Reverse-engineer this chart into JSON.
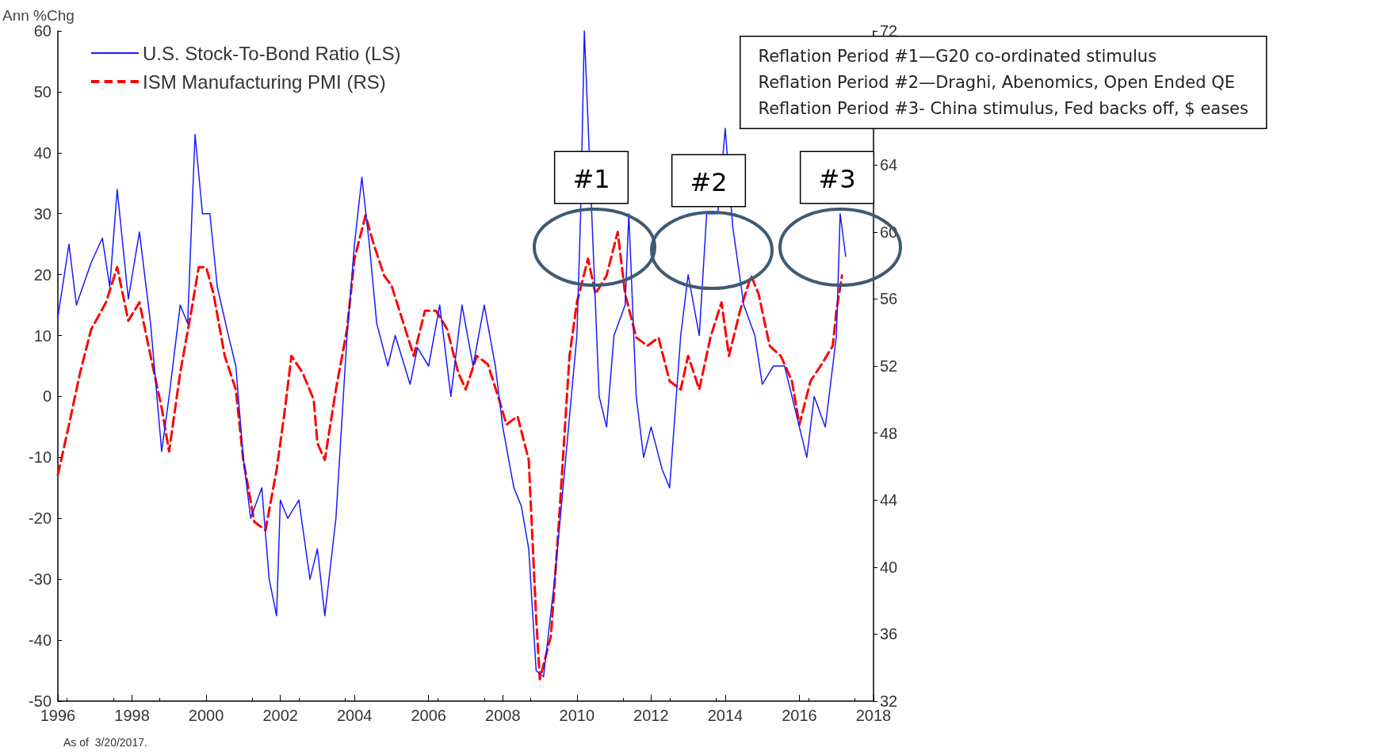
{
  "chart_data": {
    "type": "line",
    "ylabel": "Ann %Chg",
    "xlim": [
      1996,
      2018
    ],
    "xticks": [
      1996,
      1998,
      2000,
      2002,
      2004,
      2006,
      2008,
      2010,
      2012,
      2014,
      2016,
      2018
    ],
    "ylim": [
      -50,
      60
    ],
    "yticks": [
      -50,
      -40,
      -30,
      -20,
      -10,
      0,
      10,
      20,
      30,
      40,
      50,
      60
    ],
    "y2lim": [
      32,
      72
    ],
    "y2ticks": [
      32,
      36,
      40,
      44,
      48,
      52,
      56,
      60,
      64,
      {
        "value": 68,
        "label": null
      },
      72
    ],
    "grid": false,
    "legend": "top left",
    "marker": "none",
    "series": [
      {
        "name": "U.S. Stock-To-Bond Ratio (LS)",
        "color": "#1a1aff",
        "line_style": "solid",
        "x": [
          1996.0,
          1996.3,
          1996.5,
          1996.9,
          1997.2,
          1997.4,
          1997.6,
          1997.9,
          1998.2,
          1998.5,
          1998.8,
          1999.0,
          1999.3,
          1999.5,
          1999.7,
          1999.9,
          2000.1,
          2000.3,
          2000.6,
          2000.8,
          2001.0,
          2001.2,
          2001.5,
          2001.7,
          2001.9,
          2002.0,
          2002.2,
          2002.5,
          2002.8,
          2003.0,
          2003.2,
          2003.5,
          2003.8,
          2004.0,
          2004.2,
          2004.4,
          2004.6,
          2004.9,
          2005.1,
          2005.5,
          2005.7,
          2006.0,
          2006.3,
          2006.6,
          2006.9,
          2007.2,
          2007.5,
          2007.8,
          2008.0,
          2008.3,
          2008.5,
          2008.7,
          2008.9,
          2009.1,
          2009.4,
          2009.7,
          2010.0,
          2010.1,
          2010.2,
          2010.4,
          2010.6,
          2010.8,
          2011.0,
          2011.3,
          2011.4,
          2011.6,
          2011.8,
          2012.0,
          2012.3,
          2012.5,
          2012.8,
          2013.0,
          2013.3,
          2013.5,
          2013.8,
          2014.0,
          2014.2,
          2014.5,
          2014.8,
          2015.0,
          2015.3,
          2015.6,
          2016.0,
          2016.2,
          2016.4,
          2016.7,
          2016.9,
          2017.0,
          2017.1,
          2017.25
        ],
        "values": [
          13,
          25,
          15,
          22,
          26,
          18,
          34,
          16,
          27,
          12,
          -9,
          0,
          15,
          12,
          43,
          30,
          30,
          18,
          10,
          5,
          -10,
          -20,
          -15,
          -30,
          -36,
          -17,
          -20,
          -17,
          -30,
          -25,
          -36,
          -20,
          10,
          25,
          36,
          25,
          12,
          5,
          10,
          2,
          8,
          5,
          15,
          0,
          15,
          5,
          15,
          5,
          -5,
          -15,
          -18,
          -25,
          -45,
          -46,
          -30,
          -10,
          10,
          30,
          60,
          30,
          0,
          -5,
          10,
          15,
          30,
          0,
          -10,
          -5,
          -12,
          -15,
          10,
          20,
          10,
          30,
          30,
          44,
          28,
          15,
          10,
          2,
          5,
          5,
          -5,
          -10,
          0,
          -5,
          5,
          10,
          30,
          23
        ]
      },
      {
        "name": "ISM Manufacturing PMI (RS)",
        "color": "#ff0000",
        "line_style": "dashed",
        "axis": "y2",
        "x": [
          1996.0,
          1996.3,
          1996.6,
          1996.9,
          1997.3,
          1997.6,
          1997.9,
          1998.2,
          1998.5,
          1998.8,
          1999.0,
          1999.3,
          1999.6,
          1999.8,
          2000.0,
          2000.2,
          2000.5,
          2000.8,
          2001.0,
          2001.3,
          2001.6,
          2001.9,
          2002.1,
          2002.3,
          2002.6,
          2002.9,
          2003.0,
          2003.2,
          2003.5,
          2003.8,
          2004.0,
          2004.3,
          2004.5,
          2004.8,
          2005.0,
          2005.3,
          2005.6,
          2005.9,
          2006.2,
          2006.5,
          2006.8,
          2007.0,
          2007.3,
          2007.6,
          2007.9,
          2008.1,
          2008.4,
          2008.7,
          2008.9,
          2009.0,
          2009.3,
          2009.5,
          2009.8,
          2010.0,
          2010.3,
          2010.5,
          2010.8,
          2011.1,
          2011.3,
          2011.6,
          2011.9,
          2012.2,
          2012.5,
          2012.8,
          2013.0,
          2013.3,
          2013.6,
          2013.9,
          2014.1,
          2014.4,
          2014.7,
          2014.9,
          2015.2,
          2015.5,
          2015.8,
          2016.0,
          2016.3,
          2016.6,
          2016.9,
          2017.0,
          2017.15
        ],
        "values": [
          45.5,
          48.5,
          51.6,
          54.2,
          55.8,
          57.9,
          54.7,
          55.8,
          52.6,
          49.5,
          46.9,
          51.6,
          55.3,
          57.9,
          57.9,
          56.3,
          52.6,
          50.6,
          46.4,
          42.7,
          42.2,
          45.8,
          49,
          52.6,
          51.6,
          50,
          47.4,
          46.4,
          50.6,
          54.2,
          58.4,
          61,
          59.4,
          57.4,
          56.8,
          54.7,
          52.6,
          55.3,
          55.3,
          54.2,
          51.6,
          50.6,
          52.6,
          52.1,
          50,
          48.5,
          49,
          46.4,
          37,
          33.3,
          35.9,
          42.2,
          52.6,
          55.8,
          58.4,
          56.3,
          57.4,
          60,
          56.3,
          53.7,
          53.2,
          53.7,
          51.1,
          50.6,
          52.6,
          50.6,
          53.7,
          55.8,
          52.6,
          55.3,
          57.4,
          56.3,
          53.2,
          52.6,
          51.1,
          48.5,
          51.1,
          52.1,
          53.2,
          55.3,
          57.4
        ]
      }
    ],
    "annotations": [
      "#1",
      "#2",
      "#3",
      "Reflation Period #1—G20 co-ordinated stimulus\nReflation Period #2—Draghi, Abenomics, Open Ended QE\nReflation Period #3- China stimulus, Fed backs off, $ eases",
      "As of  3/20/2017."
    ]
  }
}
